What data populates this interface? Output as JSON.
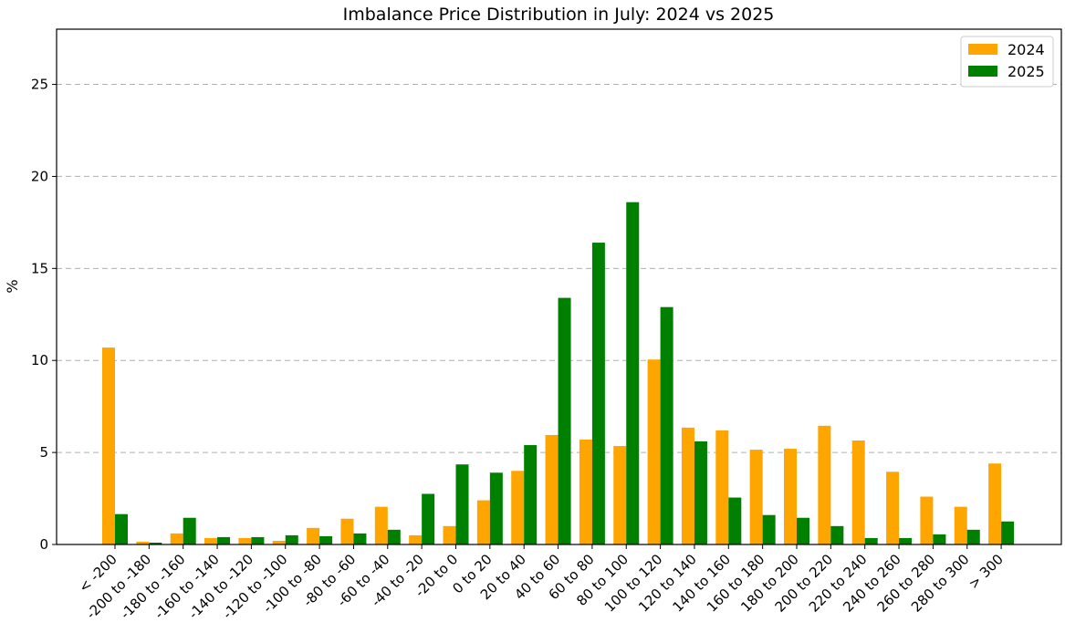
{
  "chart_data": {
    "type": "bar",
    "title": "Imbalance Price Distribution in July: 2024 vs 2025",
    "xlabel": "",
    "ylabel": "%",
    "ylim": [
      0,
      28
    ],
    "yticks": [
      0,
      5,
      10,
      15,
      20,
      25
    ],
    "grid": "y, dashed",
    "legend_position": "top-right",
    "categories": [
      "< -200",
      "-200 to -180",
      "-180 to -160",
      "-160 to -140",
      "-140 to -120",
      "-120 to -100",
      "-100 to -80",
      "-80 to -60",
      "-60 to -40",
      "-40 to -20",
      "-20 to 0",
      "0 to 20",
      "20 to 40",
      "40 to 60",
      "60 to 80",
      "80 to 100",
      "100 to 120",
      "120 to 140",
      "140 to 160",
      "160 to 180",
      "180 to 200",
      "200 to 220",
      "220 to 240",
      "240 to 260",
      "260 to 280",
      "280 to 300",
      "> 300"
    ],
    "series": [
      {
        "name": "2024",
        "color": "#FFA500",
        "values": [
          10.7,
          0.15,
          0.6,
          0.35,
          0.35,
          0.2,
          0.9,
          1.4,
          2.05,
          0.5,
          1.0,
          2.4,
          4.0,
          5.95,
          5.7,
          5.35,
          10.05,
          6.35,
          6.2,
          5.15,
          5.2,
          6.45,
          5.65,
          3.95,
          2.6,
          2.05,
          4.4
        ]
      },
      {
        "name": "2025",
        "color": "#008000",
        "values": [
          1.65,
          0.1,
          1.45,
          0.4,
          0.4,
          0.5,
          0.45,
          0.6,
          0.8,
          2.75,
          4.35,
          3.9,
          5.4,
          13.4,
          16.4,
          18.6,
          12.9,
          5.6,
          2.55,
          1.6,
          1.45,
          1.0,
          0.35,
          0.35,
          0.55,
          0.8,
          1.25
        ]
      }
    ]
  }
}
